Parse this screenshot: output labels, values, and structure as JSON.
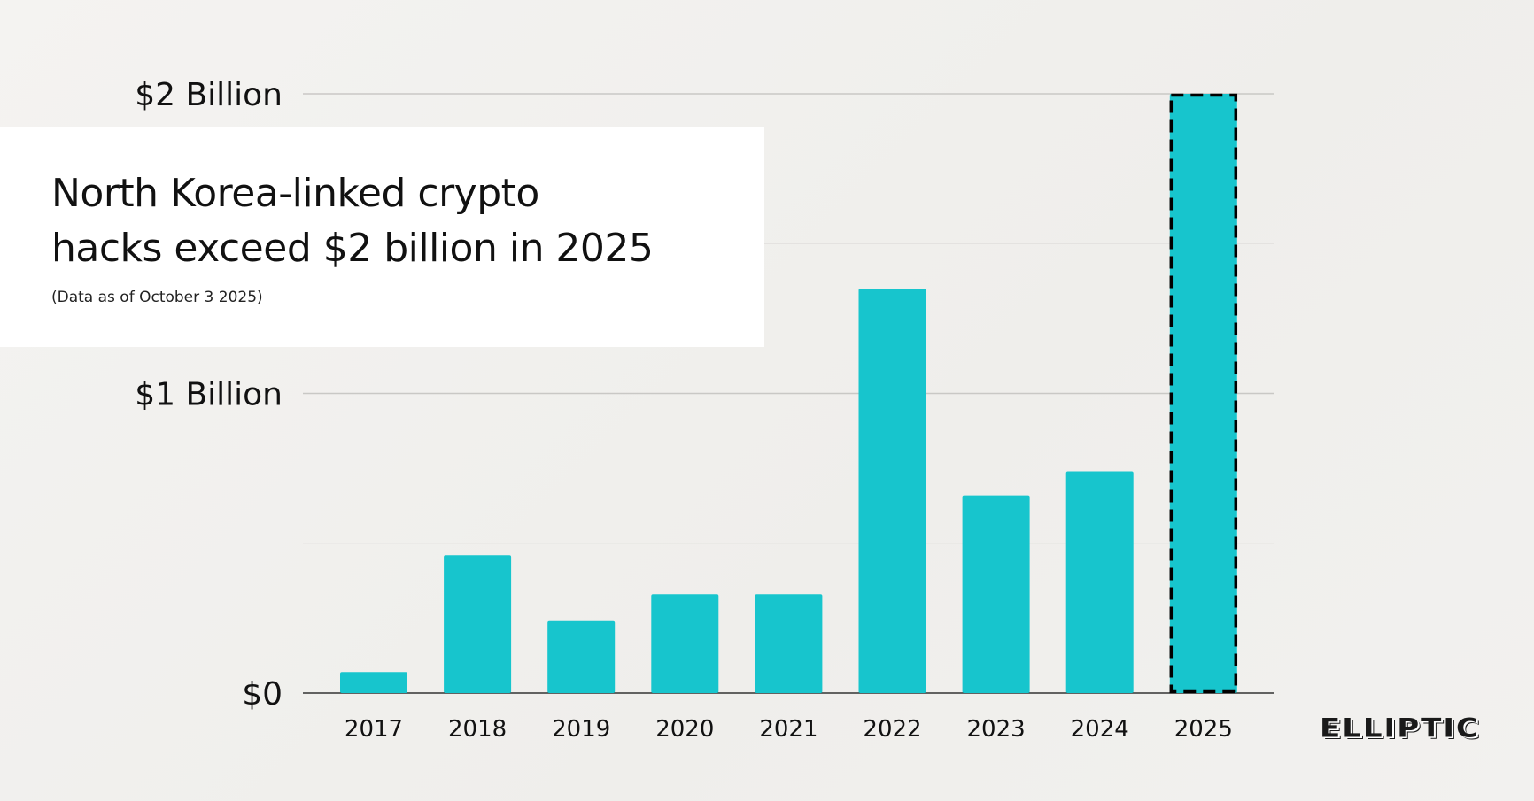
{
  "chart_data": {
    "type": "bar",
    "title": "North Korea-linked crypto hacks exceed $2 billion in 2025",
    "subtitle": "(Data as of October 3 2025)",
    "categories": [
      "2017",
      "2018",
      "2019",
      "2020",
      "2021",
      "2022",
      "2023",
      "2024",
      "2025"
    ],
    "values": [
      0.07,
      0.46,
      0.24,
      0.33,
      0.33,
      1.35,
      0.66,
      0.74,
      2.0
    ],
    "unit": "billion USD",
    "ylim": [
      0,
      2
    ],
    "yticks": [
      {
        "value": 0,
        "label": "$0"
      },
      {
        "value": 1,
        "label": "$1 Billion"
      },
      {
        "value": 2,
        "label": "$2 Billion"
      }
    ],
    "minor_gridlines": [
      0.5,
      1.5
    ],
    "grid": true,
    "bar_color": "#17c5cd",
    "highlighted_category": "2025",
    "highlight_style": "dashed black outline"
  },
  "header": {
    "title_line1": "North Korea-linked crypto",
    "title_line2": "hacks exceed $2 billion in 2025",
    "subtitle": "(Data as of October 3 2025)"
  },
  "brand": {
    "logo_text": "ELLIPTIC"
  }
}
